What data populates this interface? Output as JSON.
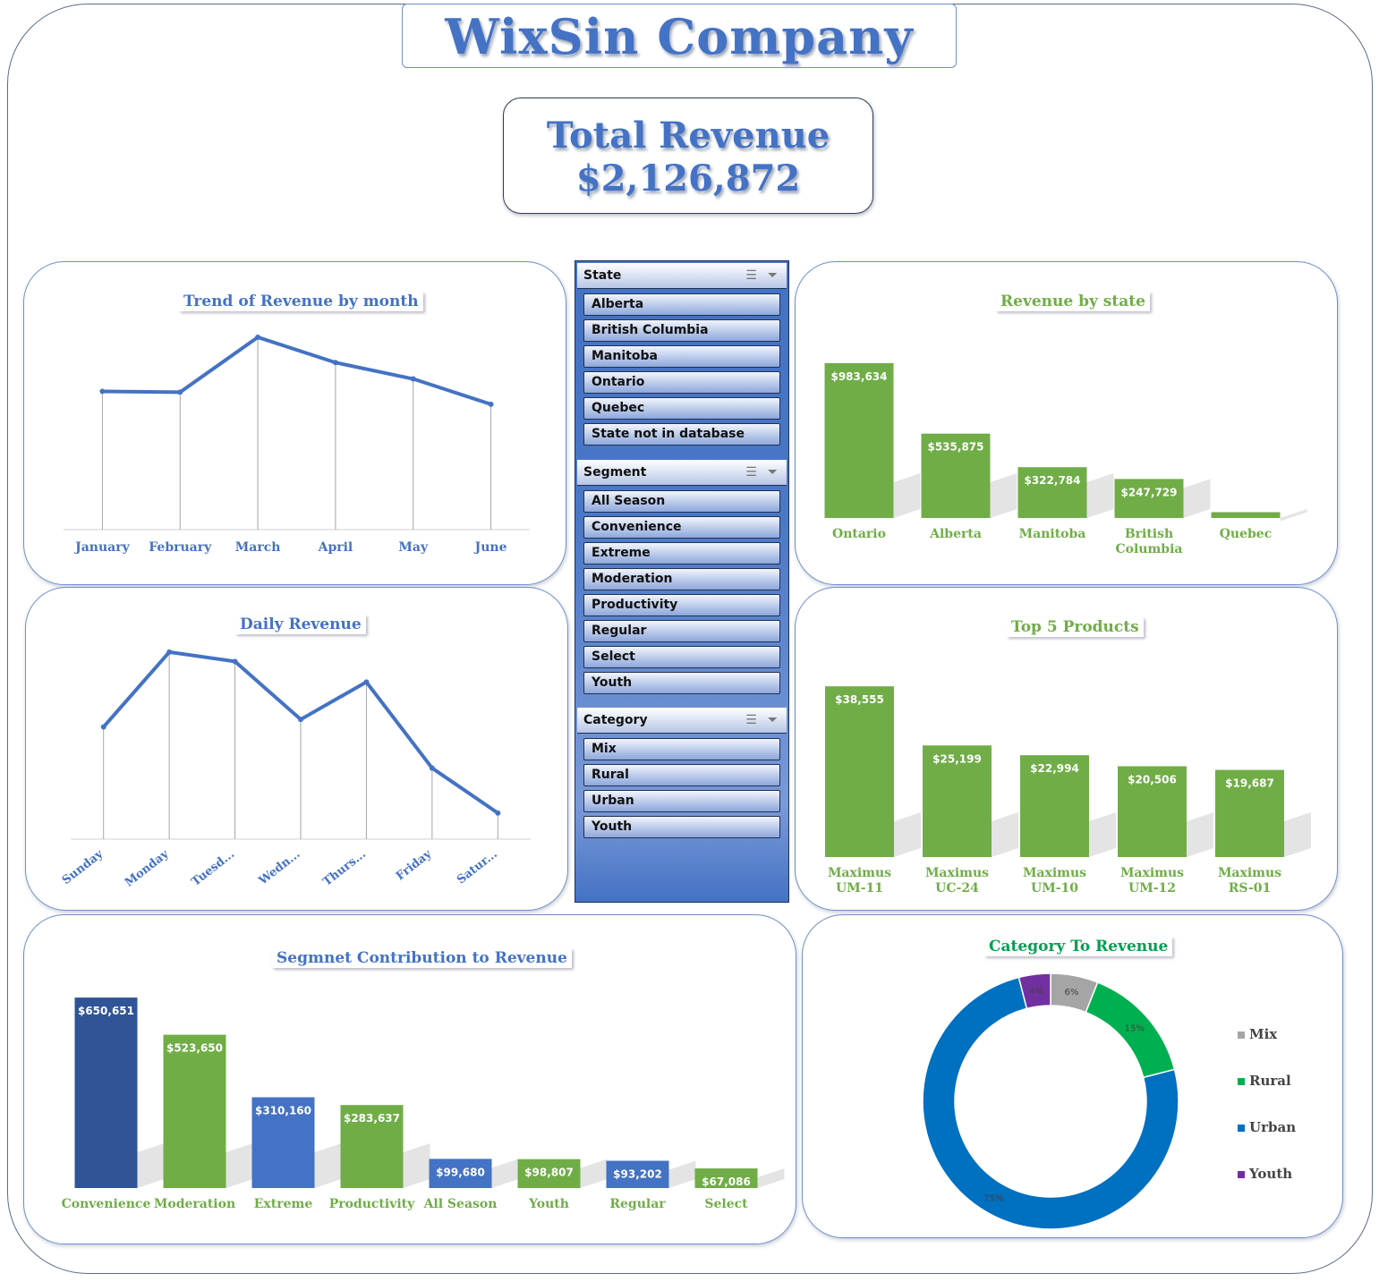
{
  "header": {
    "company": "WixSin Company",
    "kpi_label": "Total Revenue",
    "kpi_value": "$2,126,872"
  },
  "colors": {
    "blue": "#4472c4",
    "green": "#70ad47",
    "dark_blue": "#2f5597",
    "mix": "#a5a5a5",
    "rural": "#00b050",
    "urban": "#0070c0",
    "youth": "#7030a0"
  },
  "slicers": [
    {
      "title": "State",
      "items": [
        "Alberta",
        "British Columbia",
        "Manitoba",
        "Ontario",
        "Quebec",
        "State not in database"
      ]
    },
    {
      "title": "Segment",
      "items": [
        "All Season",
        "Convenience",
        "Extreme",
        "Moderation",
        "Productivity",
        "Regular",
        "Select",
        "Youth"
      ]
    },
    {
      "title": "Category",
      "items": [
        "Mix",
        "Rural",
        "Urban",
        "Youth"
      ]
    }
  ],
  "chart_data": [
    {
      "id": "monthly",
      "type": "line",
      "title": "Trend of Revenue by month",
      "categories": [
        "January",
        "February",
        "March",
        "April",
        "May",
        "June"
      ],
      "values": [
        322000,
        320000,
        448000,
        389000,
        351000,
        292000
      ],
      "ylim": [
        0,
        500000
      ]
    },
    {
      "id": "daily",
      "type": "line",
      "title": "Daily Revenue",
      "categories": [
        "Sunday",
        "Monday",
        "Tuesd...",
        "Wedn...",
        "Thurs...",
        "Friday",
        "Satur..."
      ],
      "values": [
        300000,
        500000,
        475000,
        320000,
        420000,
        190000,
        70000
      ],
      "ylim": [
        0,
        550000
      ]
    },
    {
      "id": "state",
      "type": "bar",
      "title": "Revenue by state",
      "categories": [
        "Ontario",
        "Alberta",
        "Manitoba",
        "British Columbia",
        "Quebec"
      ],
      "values": [
        983634,
        535875,
        322784,
        247729,
        36850
      ],
      "labels": [
        "$983,634",
        "$535,875",
        "$322,784",
        "$247,729",
        ""
      ],
      "ylim": [
        0,
        1000000
      ]
    },
    {
      "id": "products",
      "type": "bar",
      "title": "Top 5 Products",
      "categories": [
        "Maximus UM-11",
        "Maximus UC-24",
        "Maximus UM-10",
        "Maximus UM-12",
        "Maximus RS-01"
      ],
      "values": [
        38555,
        25199,
        22994,
        20506,
        19687
      ],
      "labels": [
        "$38,555",
        "$25,199",
        "$22,994",
        "$20,506",
        "$19,687"
      ],
      "ylim": [
        0,
        40000
      ]
    },
    {
      "id": "segment",
      "type": "bar",
      "title": "Segmnet Contribution to Revenue",
      "categories": [
        "Convenience",
        "Moderation",
        "Extreme",
        "Productivity",
        "All Season",
        "Youth",
        "Regular",
        "Select"
      ],
      "values": [
        650651,
        523650,
        310160,
        283637,
        99680,
        98807,
        93202,
        67086
      ],
      "labels": [
        "$650,651",
        "$523,650",
        "$310,160",
        "$283,637",
        "$99,680",
        "$98,807",
        "$93,202",
        "$67,086"
      ],
      "bar_colors": [
        "#2f5597",
        "#70ad47",
        "#4472c4",
        "#70ad47",
        "#4472c4",
        "#70ad47",
        "#4472c4",
        "#70ad47"
      ],
      "ylim": [
        0,
        660000
      ]
    },
    {
      "id": "category",
      "type": "pie",
      "title": "Category To Revenue",
      "categories": [
        "Mix",
        "Rural",
        "Urban",
        "Youth"
      ],
      "values": [
        6,
        15,
        75,
        4
      ],
      "labels": [
        "6%",
        "15%",
        "75%",
        "4%"
      ],
      "colors": [
        "#a5a5a5",
        "#00b050",
        "#0070c0",
        "#7030a0"
      ],
      "legend": "right"
    }
  ]
}
